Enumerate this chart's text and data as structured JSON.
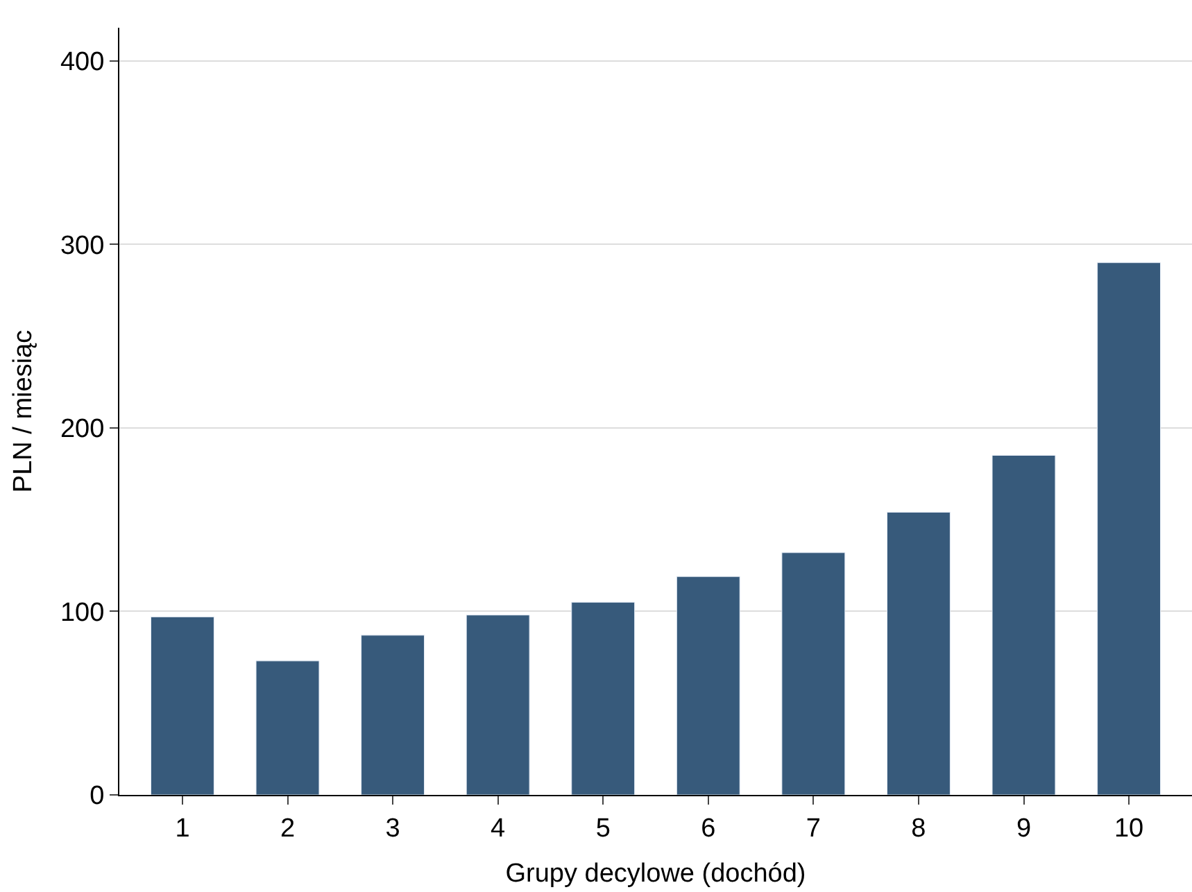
{
  "chart_data": {
    "type": "bar",
    "xlabel": "Grupy decylowe (dochód)",
    "ylabel": "PLN / miesiąc",
    "categories": [
      "1",
      "2",
      "3",
      "4",
      "5",
      "6",
      "7",
      "8",
      "9",
      "10"
    ],
    "values": [
      97,
      73,
      87,
      98,
      105,
      119,
      132,
      154,
      185,
      290
    ],
    "color": "#375a7b",
    "ylim": [
      0,
      418
    ],
    "yticks": [
      0,
      100,
      200,
      300,
      400
    ],
    "grid": "y"
  }
}
